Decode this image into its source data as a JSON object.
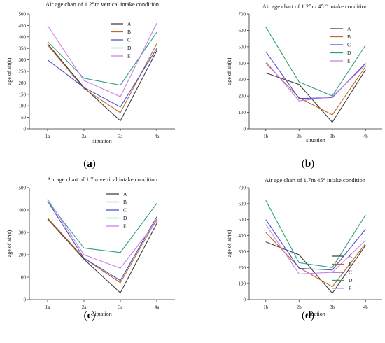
{
  "colors": {
    "A": "#3d3d3d",
    "B": "#c0682a",
    "C": "#4a52c8",
    "D": "#2aa07a",
    "E": "#c880e8"
  },
  "chart_data": [
    {
      "type": "line",
      "title": "Air age chart of 1.25m vertical intake condition",
      "xlabel": "situation",
      "ylabel": "age of air(s)",
      "categories": [
        "1a",
        "2a",
        "3a",
        "4a"
      ],
      "ylim": [
        0,
        500
      ],
      "yticks": [
        0,
        50,
        100,
        150,
        200,
        250,
        300,
        350,
        400,
        450,
        500
      ],
      "legend": "top-right",
      "series": [
        {
          "name": "A",
          "values": [
            370,
            180,
            35,
            340
          ]
        },
        {
          "name": "B",
          "values": [
            365,
            175,
            70,
            370
          ]
        },
        {
          "name": "C",
          "values": [
            300,
            180,
            95,
            350
          ]
        },
        {
          "name": "D",
          "values": [
            380,
            220,
            190,
            420
          ]
        },
        {
          "name": "E",
          "values": [
            450,
            210,
            140,
            460
          ]
        }
      ],
      "panel_label": "a"
    },
    {
      "type": "line",
      "title": "Air age chart of 1.25m 45 ° intake condition",
      "xlabel": "situation",
      "ylabel": "age of air(s)",
      "categories": [
        "1b",
        "2b",
        "3b",
        "4b"
      ],
      "ylim": [
        0,
        700
      ],
      "yticks": [
        0,
        100,
        200,
        300,
        400,
        500,
        600,
        700
      ],
      "legend": "top-right",
      "series": [
        {
          "name": "A",
          "values": [
            340,
            270,
            40,
            360
          ]
        },
        {
          "name": "B",
          "values": [
            400,
            190,
            85,
            380
          ]
        },
        {
          "name": "C",
          "values": [
            470,
            185,
            190,
            400
          ]
        },
        {
          "name": "D",
          "values": [
            620,
            285,
            200,
            510
          ]
        },
        {
          "name": "E",
          "values": [
            410,
            170,
            195,
            390
          ]
        }
      ],
      "panel_label": "b"
    },
    {
      "type": "line",
      "title": "Air age chart of 1.7m vertical intake condition",
      "xlabel": "situation",
      "ylabel": "age of air(s)",
      "categories": [
        "1a",
        "2a",
        "3a",
        "4a"
      ],
      "ylim": [
        0,
        500
      ],
      "yticks": [
        0,
        100,
        200,
        300,
        400,
        500
      ],
      "legend": "top-right",
      "series": [
        {
          "name": "A",
          "values": [
            360,
            180,
            30,
            340
          ]
        },
        {
          "name": "B",
          "values": [
            365,
            185,
            75,
            360
          ]
        },
        {
          "name": "C",
          "values": [
            440,
            185,
            85,
            370
          ]
        },
        {
          "name": "D",
          "values": [
            440,
            230,
            210,
            430
          ]
        },
        {
          "name": "E",
          "values": [
            450,
            200,
            140,
            350
          ]
        }
      ],
      "panel_label": "c"
    },
    {
      "type": "line",
      "title": "Air age chart of 1.7m 45° intake condition",
      "xlabel": "situation",
      "ylabel": "age of air(s)",
      "categories": [
        "1b",
        "2b",
        "3b",
        "4b"
      ],
      "ylim": [
        0,
        700
      ],
      "yticks": [
        0,
        100,
        200,
        300,
        400,
        500,
        600,
        700
      ],
      "legend": "top-right",
      "series": [
        {
          "name": "A",
          "values": [
            360,
            280,
            40,
            340
          ]
        },
        {
          "name": "B",
          "values": [
            420,
            200,
            80,
            350
          ]
        },
        {
          "name": "C",
          "values": [
            500,
            195,
            185,
            440
          ]
        },
        {
          "name": "D",
          "values": [
            620,
            230,
            200,
            530
          ]
        },
        {
          "name": "E",
          "values": [
            470,
            160,
            170,
            370
          ]
        }
      ],
      "panel_label": "d"
    }
  ]
}
